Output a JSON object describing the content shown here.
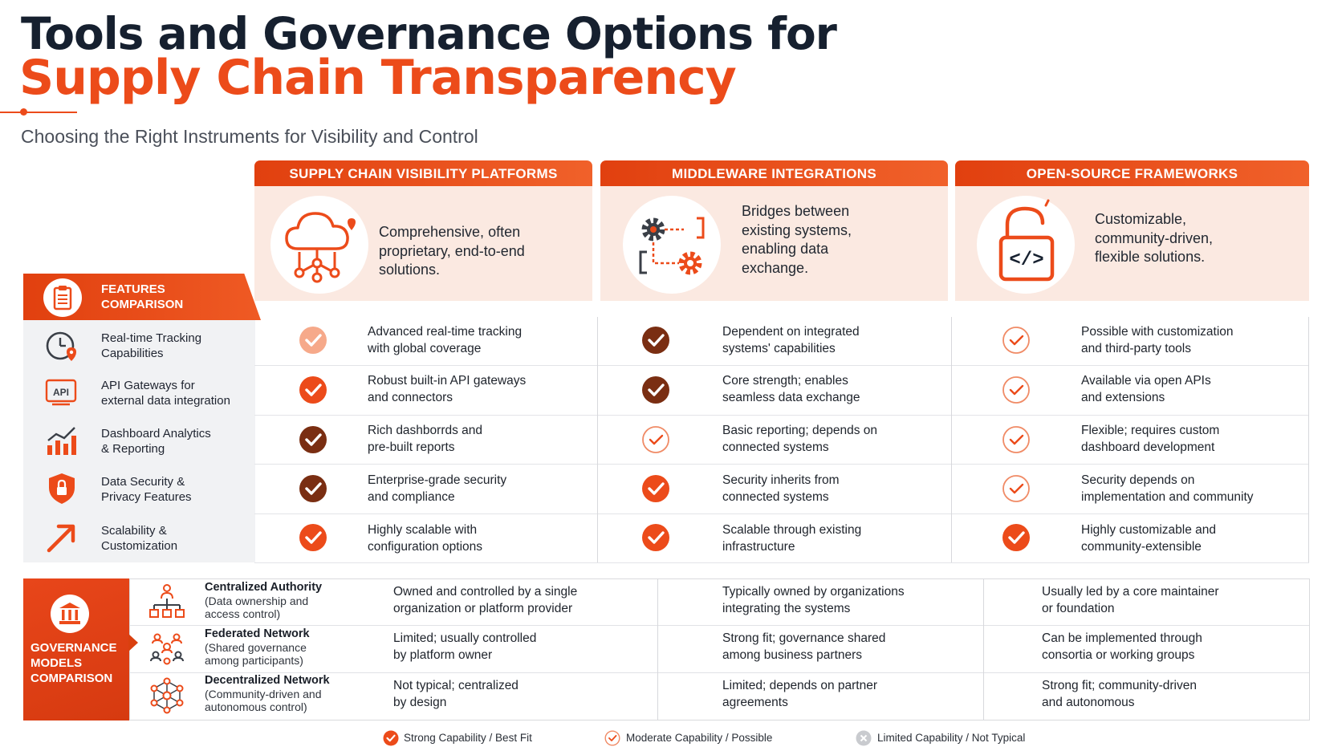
{
  "header": {
    "title_line1": "Tools and Governance Options for",
    "title_line2": "Supply Chain Transparency",
    "subtitle": "Choosing the Right Instruments for Visibility and Control"
  },
  "columns": [
    {
      "title": "SUPPLY CHAIN VISIBILITY PLATFORMS",
      "icon": "cloud-network-icon",
      "description": [
        "Comprehensive, often",
        "proprietary, end-to-end",
        "solutions."
      ]
    },
    {
      "title": "MIDDLEWARE INTEGRATIONS",
      "icon": "gears-connector-icon",
      "description": [
        "Bridges between",
        "existing systems,",
        "enabling data",
        "exchange."
      ]
    },
    {
      "title": "OPEN-SOURCE FRAMEWORKS",
      "icon": "unlocked-code-icon",
      "description": [
        "Customizable,",
        "community-driven,",
        "flexible solutions."
      ]
    }
  ],
  "features_comparison": {
    "label": [
      "FEATURES",
      "COMPARISON"
    ],
    "rows": [
      {
        "icon": "clock-location-icon",
        "label": [
          "Real-time Tracking",
          "Capabilities"
        ],
        "cells": [
          {
            "rating": "strong-light",
            "text": [
              "Advanced real-time tracking",
              "with global coverage"
            ]
          },
          {
            "rating": "strong-dark",
            "text": [
              "Dependent on integrated",
              "systems' capabilities"
            ]
          },
          {
            "rating": "moderate",
            "text": [
              "Possible with customization",
              "and third-party tools"
            ]
          }
        ]
      },
      {
        "icon": "api-gateway-icon",
        "label": [
          "API Gateways for",
          "external data integration"
        ],
        "icon_text": "API",
        "cells": [
          {
            "rating": "strong",
            "text": [
              "Robust built-in API gateways",
              "and connectors"
            ]
          },
          {
            "rating": "strong-dark",
            "text": [
              "Core strength; enables",
              "seamless data exchange"
            ]
          },
          {
            "rating": "moderate",
            "text": [
              "Available via open APIs",
              "and extensions"
            ]
          }
        ]
      },
      {
        "icon": "bar-chart-trend-icon",
        "label": [
          "Dashboard Analytics",
          "& Reporting"
        ],
        "cells": [
          {
            "rating": "strong-dark",
            "text": [
              "Rich dashborrds and",
              "pre-built reports"
            ]
          },
          {
            "rating": "moderate",
            "text": [
              "Basic reporting; depends on",
              "connected systems"
            ]
          },
          {
            "rating": "moderate",
            "text": [
              "Flexible; requires custom",
              "dashboard development"
            ]
          }
        ]
      },
      {
        "icon": "shield-lock-icon",
        "label": [
          "Data Security &",
          "Privacy Features"
        ],
        "cells": [
          {
            "rating": "strong-dark",
            "text": [
              "Enterprise-grade security",
              "and compliance"
            ]
          },
          {
            "rating": "strong",
            "text": [
              "Security inherits from",
              "connected systems"
            ]
          },
          {
            "rating": "moderate",
            "text": [
              "Security depends on",
              "implementation and community"
            ]
          }
        ]
      },
      {
        "icon": "arrow-up-right-icon",
        "label": [
          "Scalability &",
          "Customization"
        ],
        "cells": [
          {
            "rating": "strong",
            "text": [
              "Highly scalable with",
              "configuration options"
            ]
          },
          {
            "rating": "strong",
            "text": [
              "Scalable through existing",
              "infrastructure"
            ]
          },
          {
            "rating": "strong",
            "text": [
              "Highly customizable and",
              "community-extensible"
            ]
          }
        ]
      }
    ]
  },
  "governance_comparison": {
    "label": [
      "GOVERNANCE",
      "MODELS",
      "COMPARISON"
    ],
    "rows": [
      {
        "icon": "hierarchy-icon",
        "title": "Centralized Authority",
        "note": [
          "(Data ownership and",
          "access control)"
        ],
        "cells": [
          [
            "Owned and controlled by a single",
            "organization or platform provider"
          ],
          [
            "Typically owned by organizations",
            "integrating the systems"
          ],
          [
            "Usually led by a core maintainer",
            "or foundation"
          ]
        ]
      },
      {
        "icon": "federated-people-icon",
        "title": "Federated Network",
        "note": [
          "(Shared governance",
          "among participants)"
        ],
        "cells": [
          [
            "Limited; usually controlled",
            "by platform owner"
          ],
          [
            "Strong fit; governance shared",
            "among business partners"
          ],
          [
            "Can be implemented through",
            "consortia or working groups"
          ]
        ]
      },
      {
        "icon": "mesh-network-icon",
        "title": "Decentralized Network",
        "note": [
          "(Community-driven and",
          "autonomous control)"
        ],
        "cells": [
          [
            "Not typical; centralized",
            "by design"
          ],
          [
            "Limited; depends on partner",
            "agreements"
          ],
          [
            "Strong fit; community-driven",
            "and autonomous"
          ]
        ]
      }
    ]
  },
  "legend": [
    {
      "icon": "strong-check-icon",
      "label": "Strong Capability / Best Fit"
    },
    {
      "icon": "moderate-check-icon",
      "label": "Moderate Capability / Possible"
    },
    {
      "icon": "limited-x-icon",
      "label": "Limited Capability / Not Typical"
    }
  ],
  "colors": {
    "accent": "#ec4b1a",
    "dark_check": "#7a2e12",
    "navy": "#16202f",
    "peach": "#fbe9e1"
  }
}
